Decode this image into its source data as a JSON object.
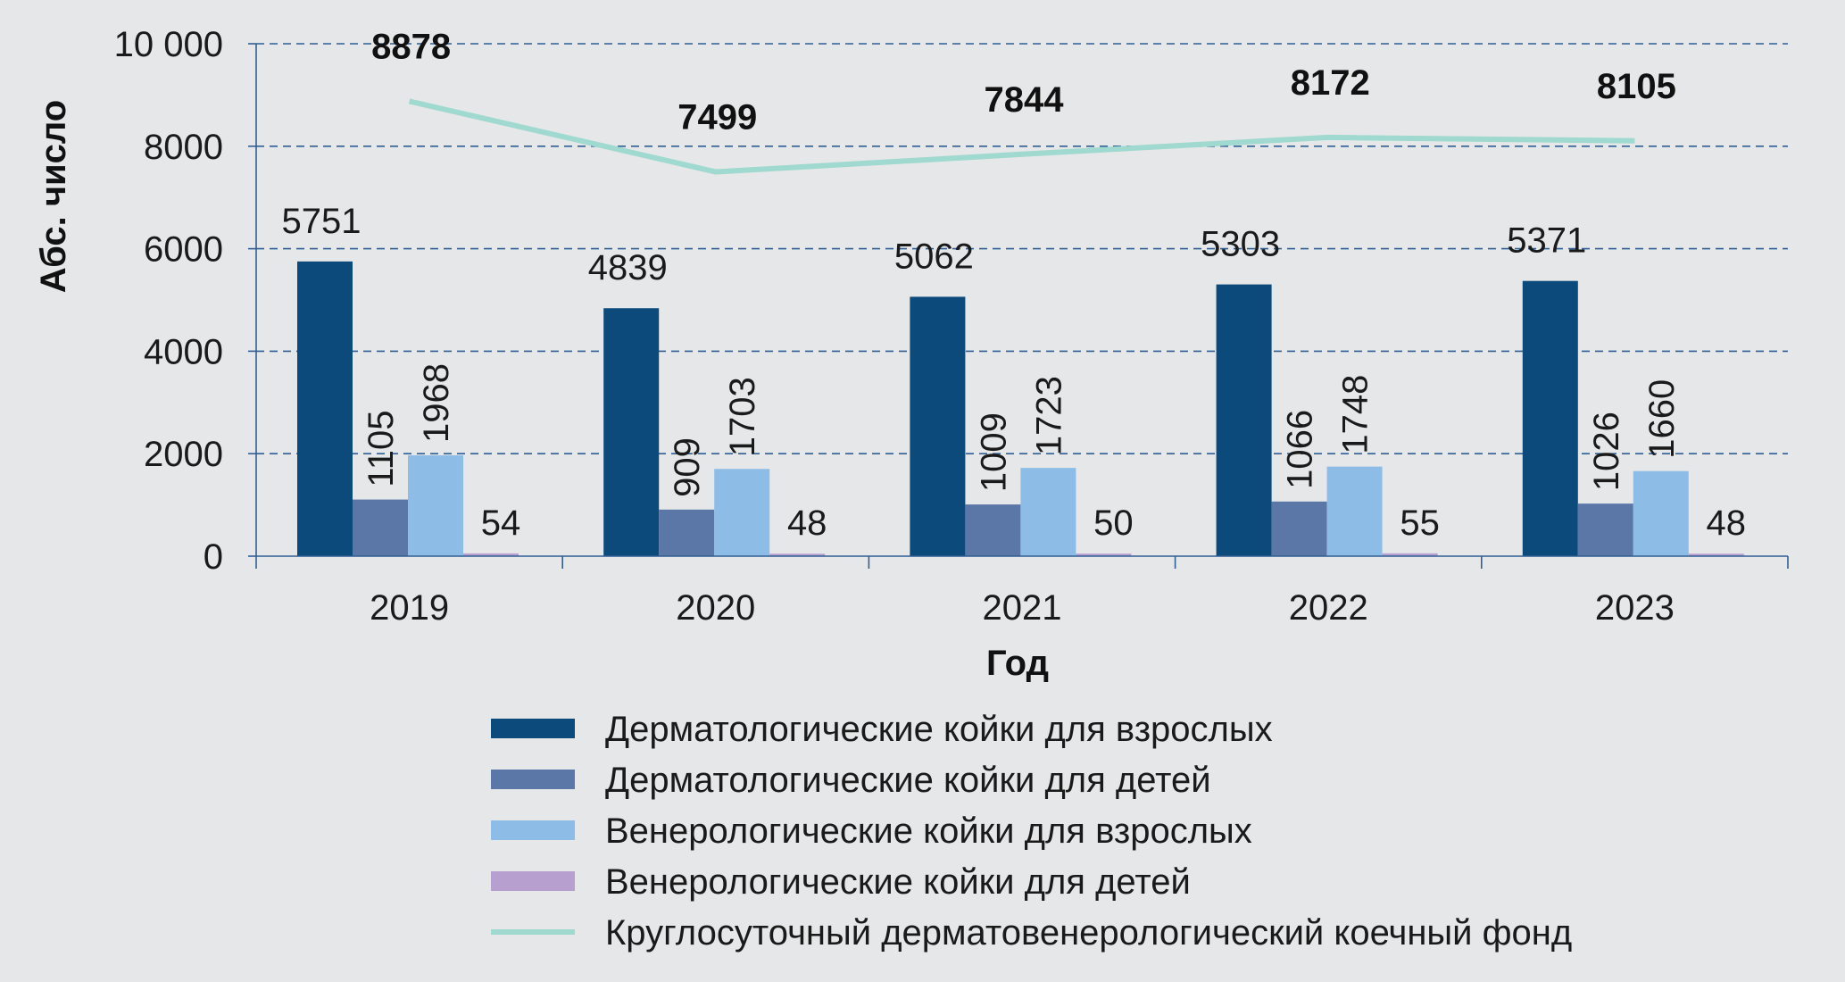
{
  "chart_data": {
    "type": "bar",
    "xlabel": "Год",
    "ylabel": "Абс. число",
    "ylim": [
      0,
      10000
    ],
    "yticks": [
      "0",
      "2000",
      "4000",
      "6000",
      "8000",
      "10 000"
    ],
    "ytick_values": [
      0,
      2000,
      4000,
      6000,
      8000,
      10000
    ],
    "grid": true,
    "legend_placement": "bottom",
    "categories": [
      "2019",
      "2020",
      "2021",
      "2022",
      "2023"
    ],
    "series": [
      {
        "name": "Дерматологические койки для взрослых",
        "type": "bar",
        "color": "#0b4a7b",
        "values": [
          5751,
          4839,
          5062,
          5303,
          5371
        ],
        "labels": [
          "5751",
          "4839",
          "5062",
          "5303",
          "5371"
        ]
      },
      {
        "name": "Дерматологические койки для детей",
        "type": "bar",
        "color": "#5b77a7",
        "values": [
          1105,
          909,
          1009,
          1066,
          1026
        ],
        "labels": [
          "1105",
          "909",
          "1009",
          "1066",
          "1026"
        ]
      },
      {
        "name": "Венерологические койки для взрослых",
        "type": "bar",
        "color": "#8dbde6",
        "values": [
          1968,
          1703,
          1723,
          1748,
          1660
        ],
        "labels": [
          "1968",
          "1703",
          "1723",
          "1748",
          "1660"
        ]
      },
      {
        "name": "Венерологические койки для детей",
        "type": "bar",
        "color": "#b79fcf",
        "values": [
          54,
          48,
          50,
          55,
          48
        ],
        "labels": [
          "54",
          "48",
          "50",
          "55",
          "48"
        ]
      },
      {
        "name": "Круглосуточный дерматовенерологический коечный фонд",
        "type": "line",
        "color": "#9fd9cf",
        "values": [
          8878,
          7499,
          7844,
          8172,
          8105
        ],
        "labels": [
          "8878",
          "7499",
          "7844",
          "8172",
          "8105"
        ]
      }
    ]
  }
}
